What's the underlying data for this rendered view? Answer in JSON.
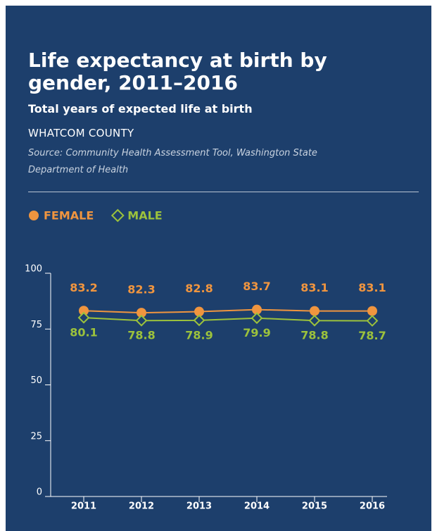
{
  "chart_data": {
    "type": "line",
    "title": "Life expectancy at birth by gender, 2011–2016",
    "subtitle": "Total years of expected life at birth",
    "region": "WHATCOM COUNTY",
    "source": "Source: Community Health Assessment Tool, Washington State Department of Health",
    "categories": [
      "2011",
      "2012",
      "2013",
      "2014",
      "2015",
      "2016"
    ],
    "series": [
      {
        "name": "FEMALE",
        "color": "#f0953f",
        "values": [
          83.2,
          82.3,
          82.8,
          83.7,
          83.1,
          83.1
        ]
      },
      {
        "name": "MALE",
        "color": "#9cc23c",
        "values": [
          80.1,
          78.8,
          78.9,
          79.9,
          78.8,
          78.7
        ]
      }
    ],
    "ylim": [
      0,
      100
    ],
    "yticks": [
      0,
      25,
      50,
      75,
      100
    ],
    "legend": "top-left"
  }
}
